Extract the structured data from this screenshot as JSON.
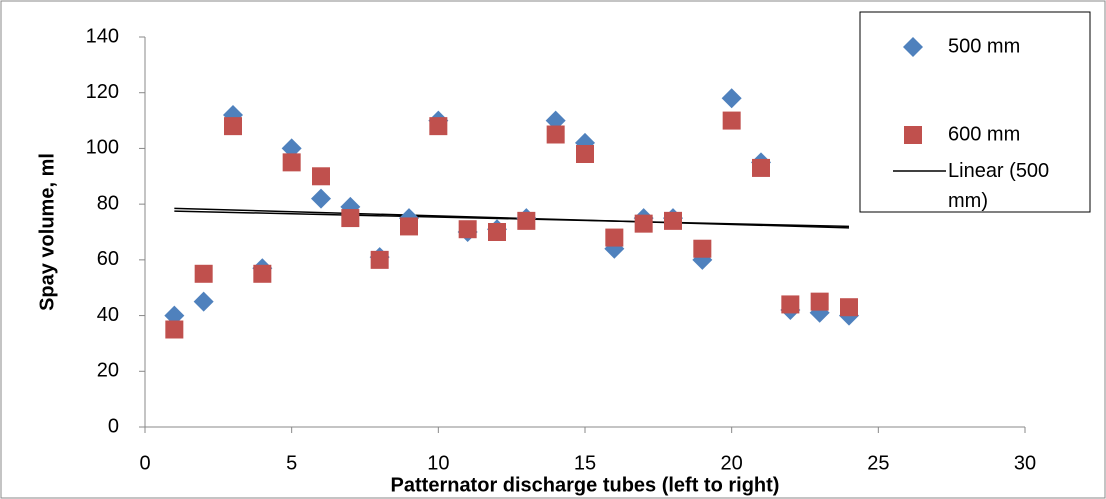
{
  "chart_data": {
    "type": "scatter",
    "xlabel": "Patternator discharge tubes (left to right)",
    "ylabel": "Spay volume, ml",
    "xlim": [
      0,
      30
    ],
    "xticks": [
      0,
      5,
      10,
      15,
      20,
      25,
      30
    ],
    "ylim": [
      0,
      140
    ],
    "yticks": [
      0,
      20,
      40,
      60,
      80,
      100,
      120,
      140
    ],
    "legend": "right",
    "series": [
      {
        "name": "500 mm",
        "color": "#4f81bd",
        "marker": "diamond",
        "x": [
          1,
          2,
          3,
          4,
          5,
          6,
          7,
          8,
          9,
          10,
          11,
          12,
          13,
          14,
          15,
          16,
          17,
          18,
          19,
          20,
          21,
          22,
          23,
          24
        ],
        "values": [
          40,
          45,
          112,
          57,
          100,
          82,
          79,
          61,
          75,
          110,
          70,
          71,
          75,
          110,
          102,
          64,
          75,
          75,
          60,
          118,
          95,
          42,
          41,
          40
        ]
      },
      {
        "name": "600 mm",
        "color": "#c0504d",
        "marker": "square",
        "x": [
          1,
          2,
          3,
          4,
          5,
          6,
          7,
          8,
          9,
          10,
          11,
          12,
          13,
          14,
          15,
          16,
          17,
          18,
          19,
          20,
          21,
          22,
          23,
          24
        ],
        "values": [
          35,
          55,
          108,
          55,
          95,
          90,
          75,
          60,
          72,
          108,
          71,
          70,
          74,
          105,
          98,
          68,
          73,
          74,
          64,
          110,
          93,
          44,
          45,
          43
        ]
      }
    ],
    "trendlines": [
      {
        "name": "Linear (500 mm)",
        "color": "#000000",
        "x": [
          1,
          24
        ],
        "values": [
          78.5,
          71.5
        ]
      },
      {
        "color": "#000000",
        "x": [
          1,
          24
        ],
        "values": [
          77.5,
          72
        ]
      }
    ]
  }
}
